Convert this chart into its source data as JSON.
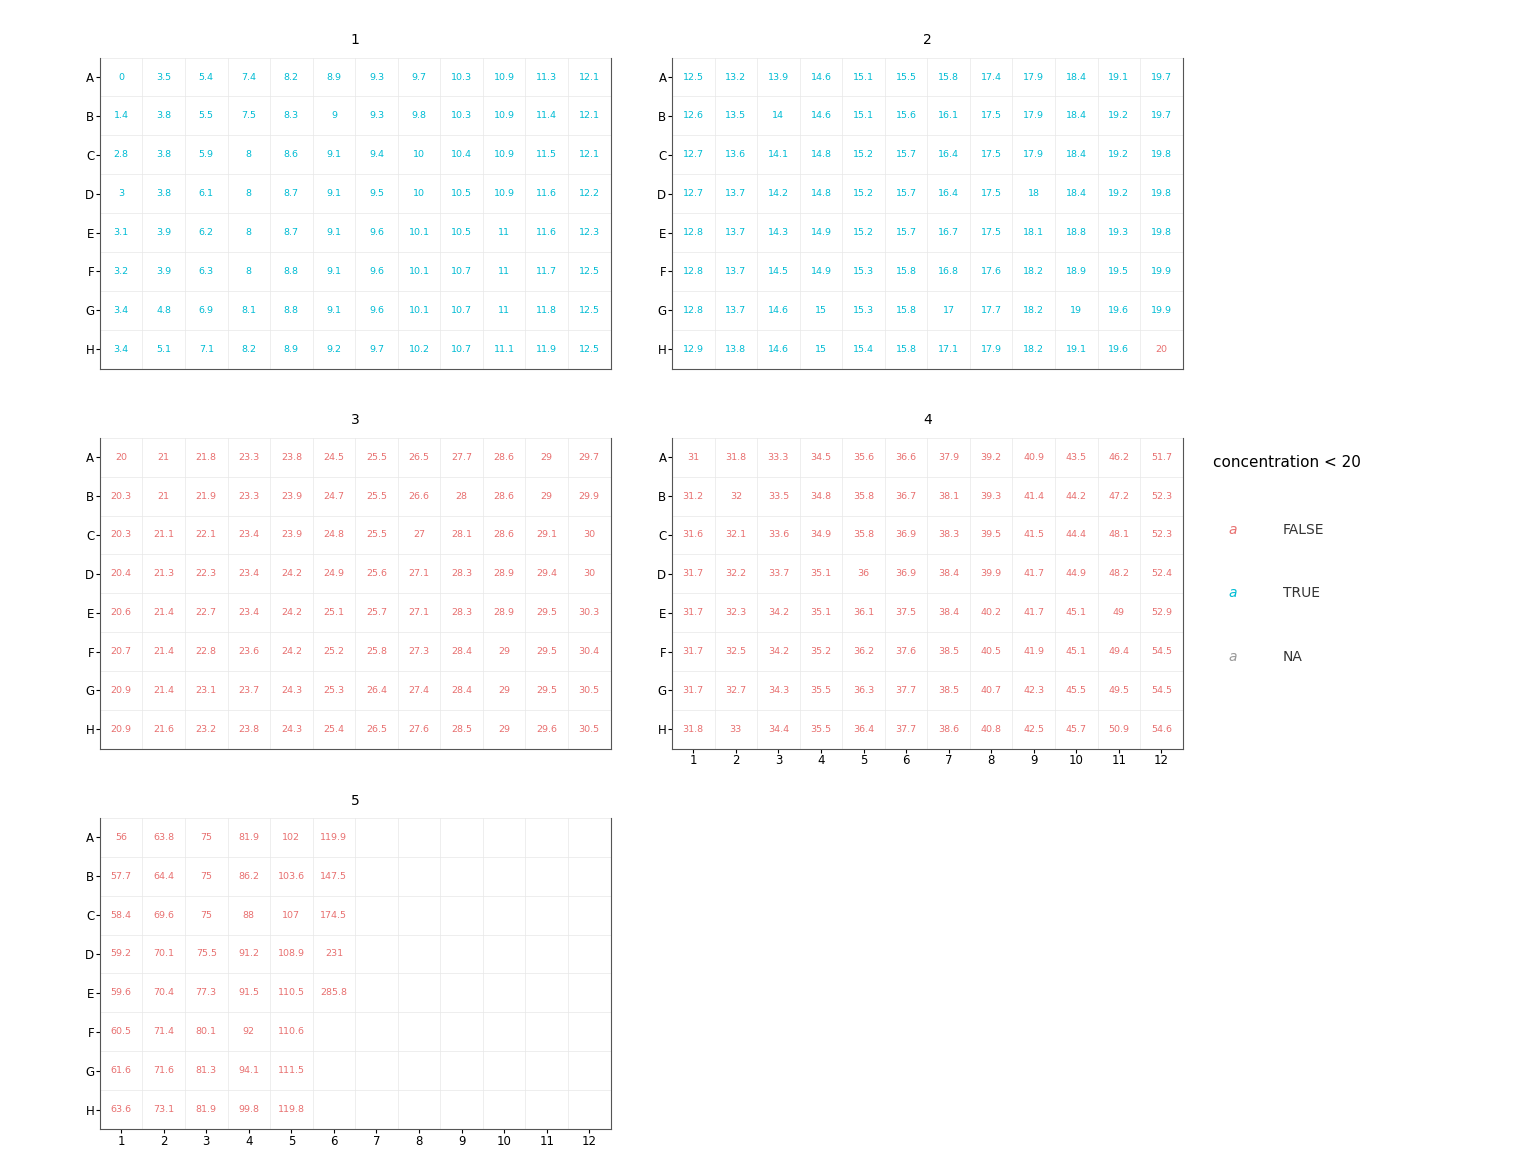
{
  "plates": {
    "1": {
      "values": [
        [
          0,
          3.5,
          5.4,
          7.4,
          8.2,
          8.9,
          9.3,
          9.7,
          10.3,
          10.9,
          11.3,
          12.1
        ],
        [
          1.4,
          3.8,
          5.5,
          7.5,
          8.3,
          9,
          9.3,
          9.8,
          10.3,
          10.9,
          11.4,
          12.1
        ],
        [
          2.8,
          3.8,
          5.9,
          8,
          8.6,
          9.1,
          9.4,
          10,
          10.4,
          10.9,
          11.5,
          12.1
        ],
        [
          3,
          3.8,
          6.1,
          8,
          8.7,
          9.1,
          9.5,
          10,
          10.5,
          10.9,
          11.6,
          12.2
        ],
        [
          3.1,
          3.9,
          6.2,
          8,
          8.7,
          9.1,
          9.6,
          10.1,
          10.5,
          11,
          11.6,
          12.3
        ],
        [
          3.2,
          3.9,
          6.3,
          8,
          8.8,
          9.1,
          9.6,
          10.1,
          10.7,
          11,
          11.7,
          12.5
        ],
        [
          3.4,
          4.8,
          6.9,
          8.1,
          8.8,
          9.1,
          9.6,
          10.1,
          10.7,
          11,
          11.8,
          12.5
        ],
        [
          3.4,
          5.1,
          7.1,
          8.2,
          8.9,
          9.2,
          9.7,
          10.2,
          10.7,
          11.1,
          11.9,
          12.5
        ]
      ],
      "show_xaxis": true,
      "show_col_ticks": false
    },
    "2": {
      "values": [
        [
          12.5,
          13.2,
          13.9,
          14.6,
          15.1,
          15.5,
          15.8,
          17.4,
          17.9,
          18.4,
          19.1,
          19.7
        ],
        [
          12.6,
          13.5,
          14,
          14.6,
          15.1,
          15.6,
          16.1,
          17.5,
          17.9,
          18.4,
          19.2,
          19.7
        ],
        [
          12.7,
          13.6,
          14.1,
          14.8,
          15.2,
          15.7,
          16.4,
          17.5,
          17.9,
          18.4,
          19.2,
          19.8
        ],
        [
          12.7,
          13.7,
          14.2,
          14.8,
          15.2,
          15.7,
          16.4,
          17.5,
          18,
          18.4,
          19.2,
          19.8
        ],
        [
          12.8,
          13.7,
          14.3,
          14.9,
          15.2,
          15.7,
          16.7,
          17.5,
          18.1,
          18.8,
          19.3,
          19.8
        ],
        [
          12.8,
          13.7,
          14.5,
          14.9,
          15.3,
          15.8,
          16.8,
          17.6,
          18.2,
          18.9,
          19.5,
          19.9
        ],
        [
          12.8,
          13.7,
          14.6,
          15,
          15.3,
          15.8,
          17,
          17.7,
          18.2,
          19,
          19.6,
          19.9
        ],
        [
          12.9,
          13.8,
          14.6,
          15,
          15.4,
          15.8,
          17.1,
          17.9,
          18.2,
          19.1,
          19.6,
          20
        ]
      ],
      "show_xaxis": true,
      "show_col_ticks": false
    },
    "3": {
      "values": [
        [
          20,
          21,
          21.8,
          23.3,
          23.8,
          24.5,
          25.5,
          26.5,
          27.7,
          28.6,
          29,
          29.7
        ],
        [
          20.3,
          21,
          21.9,
          23.3,
          23.9,
          24.7,
          25.5,
          26.6,
          28,
          28.6,
          29,
          29.9
        ],
        [
          20.3,
          21.1,
          22.1,
          23.4,
          23.9,
          24.8,
          25.5,
          27,
          28.1,
          28.6,
          29.1,
          30
        ],
        [
          20.4,
          21.3,
          22.3,
          23.4,
          24.2,
          24.9,
          25.6,
          27.1,
          28.3,
          28.9,
          29.4,
          30
        ],
        [
          20.6,
          21.4,
          22.7,
          23.4,
          24.2,
          25.1,
          25.7,
          27.1,
          28.3,
          28.9,
          29.5,
          30.3
        ],
        [
          20.7,
          21.4,
          22.8,
          23.6,
          24.2,
          25.2,
          25.8,
          27.3,
          28.4,
          29,
          29.5,
          30.4
        ],
        [
          20.9,
          21.4,
          23.1,
          23.7,
          24.3,
          25.3,
          26.4,
          27.4,
          28.4,
          29,
          29.5,
          30.5
        ],
        [
          20.9,
          21.6,
          23.2,
          23.8,
          24.3,
          25.4,
          26.5,
          27.6,
          28.5,
          29,
          29.6,
          30.5
        ]
      ],
      "show_xaxis": false,
      "show_col_ticks": false
    },
    "4": {
      "values": [
        [
          31,
          31.8,
          33.3,
          34.5,
          35.6,
          36.6,
          37.9,
          39.2,
          40.9,
          43.5,
          46.2,
          51.7
        ],
        [
          31.2,
          32,
          33.5,
          34.8,
          35.8,
          36.7,
          38.1,
          39.3,
          41.4,
          44.2,
          47.2,
          52.3
        ],
        [
          31.6,
          32.1,
          33.6,
          34.9,
          35.8,
          36.9,
          38.3,
          39.5,
          41.5,
          44.4,
          48.1,
          52.3
        ],
        [
          31.7,
          32.2,
          33.7,
          35.1,
          36,
          36.9,
          38.4,
          39.9,
          41.7,
          44.9,
          48.2,
          52.4
        ],
        [
          31.7,
          32.3,
          34.2,
          35.1,
          36.1,
          37.5,
          38.4,
          40.2,
          41.7,
          45.1,
          49,
          52.9
        ],
        [
          31.7,
          32.5,
          34.2,
          35.2,
          36.2,
          37.6,
          38.5,
          40.5,
          41.9,
          45.1,
          49.4,
          54.5
        ],
        [
          31.7,
          32.7,
          34.3,
          35.5,
          36.3,
          37.7,
          38.5,
          40.7,
          42.3,
          45.5,
          49.5,
          54.5
        ],
        [
          31.8,
          33,
          34.4,
          35.5,
          36.4,
          37.7,
          38.6,
          40.8,
          42.5,
          45.7,
          50.9,
          54.6
        ]
      ],
      "show_xaxis": true,
      "show_col_ticks": true
    },
    "5": {
      "values": [
        [
          56,
          63.8,
          75,
          81.9,
          102,
          119.9,
          null,
          null,
          null,
          null,
          null,
          null
        ],
        [
          57.7,
          64.4,
          75,
          86.2,
          103.6,
          147.5,
          null,
          null,
          null,
          null,
          null,
          null
        ],
        [
          58.4,
          69.6,
          75,
          88,
          107,
          174.5,
          null,
          null,
          null,
          null,
          null,
          null
        ],
        [
          59.2,
          70.1,
          75.5,
          91.2,
          108.9,
          231,
          null,
          null,
          null,
          null,
          null,
          null
        ],
        [
          59.6,
          70.4,
          77.3,
          91.5,
          110.5,
          285.8,
          null,
          null,
          null,
          null,
          null,
          null
        ],
        [
          60.5,
          71.4,
          80.1,
          92,
          110.6,
          null,
          null,
          null,
          null,
          null,
          null,
          null
        ],
        [
          61.6,
          71.6,
          81.3,
          94.1,
          111.5,
          null,
          null,
          null,
          null,
          null,
          null,
          null
        ],
        [
          63.6,
          73.1,
          81.9,
          99.8,
          119.8,
          null,
          null,
          null,
          null,
          null,
          null,
          null
        ]
      ],
      "show_xaxis": true,
      "show_col_ticks": true
    }
  },
  "rows_labels": [
    "A",
    "B",
    "C",
    "D",
    "E",
    "F",
    "G",
    "H"
  ],
  "col_labels": [
    1,
    2,
    3,
    4,
    5,
    6,
    7,
    8,
    9,
    10,
    11,
    12
  ],
  "threshold": 20,
  "color_true": "#00BCD4",
  "color_false": "#E87070",
  "color_na": "#999999",
  "bg_color": "#FFFFFF",
  "strip_bg": "#DCDCDC",
  "strip_border": "#555555",
  "grid_color": "#E8E8E8",
  "font_size_data": 6.8,
  "font_size_tick": 8.5,
  "font_size_strip": 10,
  "font_size_legend_title": 11,
  "font_size_legend_item": 10,
  "legend_title": "concentration < 20",
  "legend_items": [
    "FALSE",
    "TRUE",
    "NA"
  ]
}
